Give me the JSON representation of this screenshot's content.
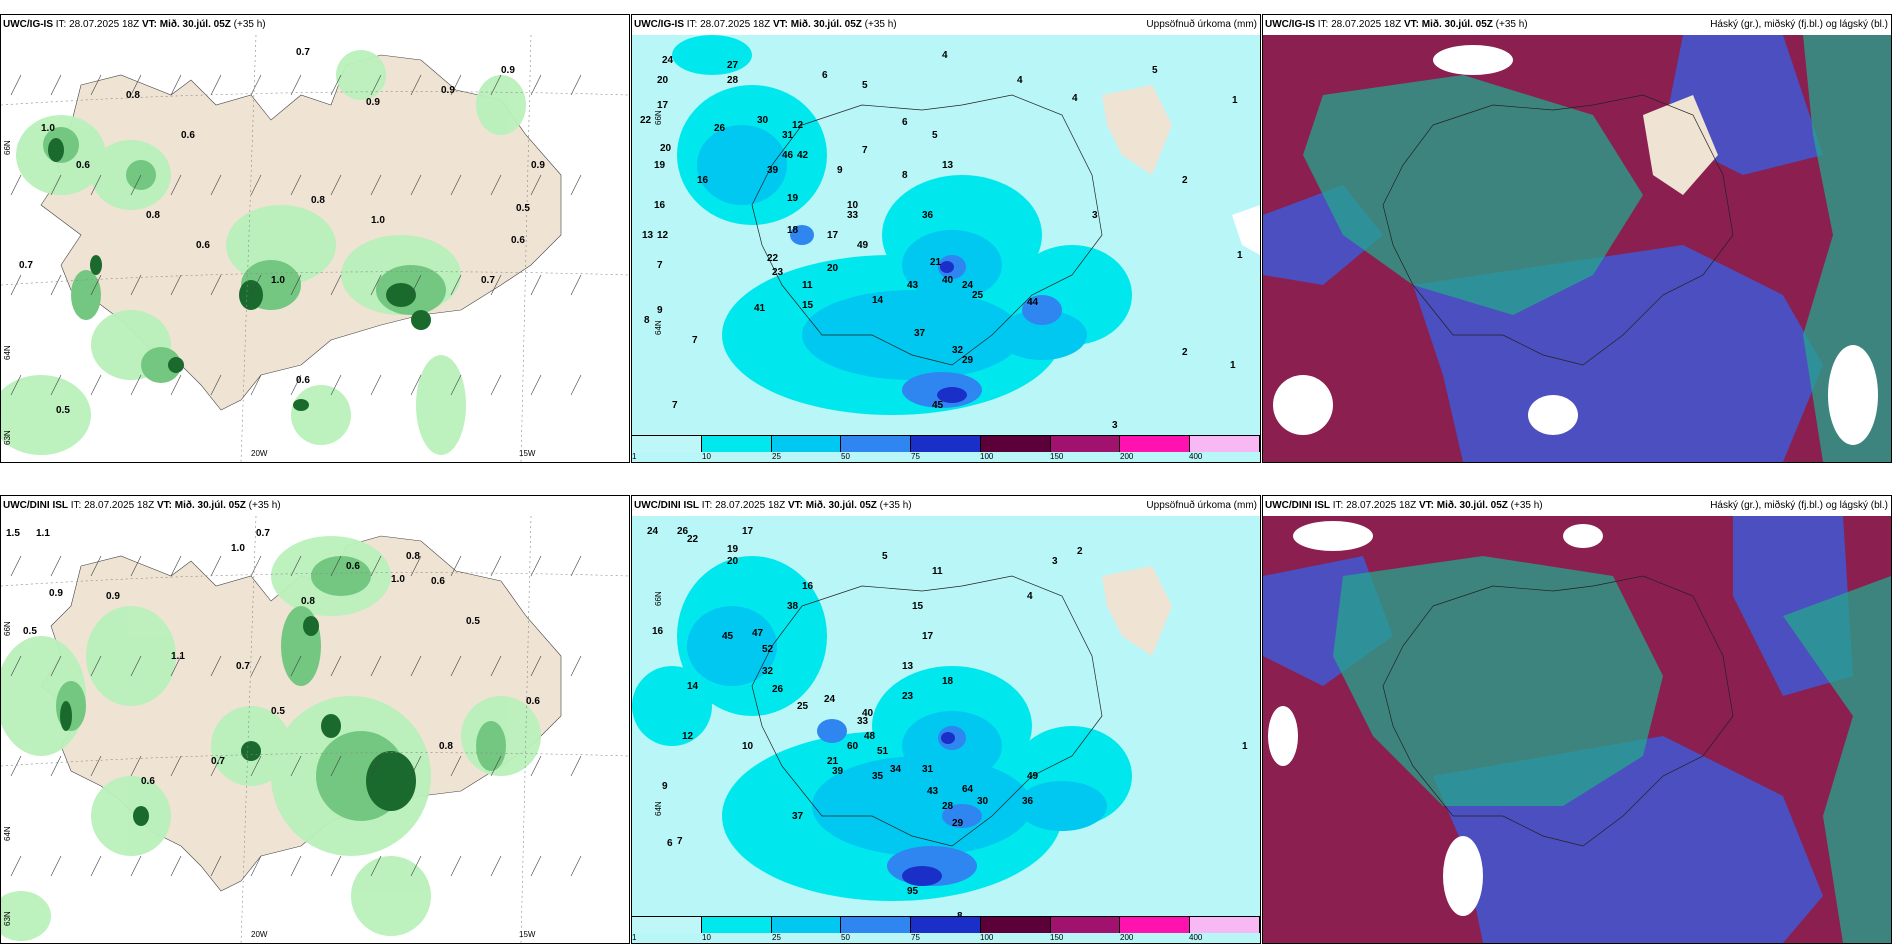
{
  "colors": {
    "land": "#efe3d4",
    "sea_bg": "#ffffff",
    "precip_light": "#b9f0ba",
    "precip_mid": "#73c780",
    "precip_heavy": "#1b6a2d",
    "precip_sea_base": "#b8f6f7",
    "cloud_high": "#24a78d",
    "cloud_mid": "#8b1f4f",
    "cloud_low": "#4b4fbf"
  },
  "legend": {
    "ticks": [
      "1",
      "10",
      "25",
      "50",
      "75",
      "100",
      "150",
      "200",
      "400"
    ],
    "colors": [
      "#bff7f9",
      "#00e8ee",
      "#00c8f0",
      "#2f86f0",
      "#1a2fc8",
      "#5b0038",
      "#a0126e",
      "#ff12b0",
      "#f7b8f4"
    ]
  },
  "top_row": {
    "panels": [
      {
        "model": "UWC/IG-IS",
        "it": "IT: 28.07.2025 18Z",
        "vt_label": "VT:",
        "vt": "Mið. 30.júl. 05Z",
        "step": "(+35 h)",
        "right": "",
        "type": "precip-wind",
        "labels": [
          "0.7",
          "0.8",
          "0.9",
          "0.6",
          "1.0",
          "0.6",
          "0.8",
          "0.6",
          "1.0",
          "0.8",
          "0.5",
          "0.7",
          "0.9",
          "0.6",
          "1.0",
          "0.9",
          "0.5",
          "0.7",
          "0.9",
          "0.6"
        ],
        "axis_bottom": [
          "20W",
          "15W"
        ],
        "axis_left": [
          "66N",
          "64N",
          "63N"
        ]
      },
      {
        "model": "UWC/IG-IS",
        "it": "IT: 28.07.2025 18Z",
        "vt_label": "VT:",
        "vt": "Mið. 30.júl. 05Z",
        "step": "(+35 h)",
        "right": "Uppsöfnuð úrkoma (mm)",
        "type": "accum",
        "labels": [
          "24",
          "20",
          "17",
          "22",
          "19",
          "20",
          "16",
          "13",
          "12",
          "7",
          "9",
          "8",
          "7",
          "7",
          "4",
          "5",
          "6",
          "4",
          "4",
          "3",
          "5",
          "6",
          "7",
          "8",
          "9",
          "10",
          "11",
          "12",
          "13",
          "14",
          "15",
          "16",
          "17",
          "18",
          "19",
          "20",
          "21",
          "22",
          "23",
          "24",
          "25",
          "26",
          "27",
          "28",
          "29",
          "30",
          "31",
          "32",
          "33",
          "36",
          "37",
          "39",
          "40",
          "41",
          "42",
          "43",
          "44",
          "45",
          "46",
          "49",
          "2",
          "1",
          "1",
          "1",
          "2",
          "3",
          "5",
          "8"
        ],
        "axis_left": [
          "66N",
          "64N"
        ]
      },
      {
        "model": "UWC/IG-IS",
        "it": "IT: 28.07.2025 18Z",
        "vt_label": "VT:",
        "vt": "Mið. 30.júl. 05Z",
        "step": "(+35 h)",
        "right": "Háský (gr.), miðský (fj.bl.) og lágský (bl.)",
        "type": "cloud"
      }
    ]
  },
  "bottom_row": {
    "panels": [
      {
        "model": "UWC/DINI ISL",
        "it": "IT: 28.07.2025 18Z",
        "vt_label": "VT:",
        "vt": "Mið. 30.júl. 05Z",
        "step": "(+35 h)",
        "right": "",
        "type": "precip-wind",
        "labels": [
          "1.5",
          "1.1",
          "0.7",
          "1.0",
          "0.8",
          "0.6",
          "0.9",
          "0.5",
          "0.9",
          "0.6",
          "1.0",
          "0.5",
          "0.6",
          "0.8",
          "0.7",
          "0.5",
          "1.1",
          "0.7",
          "0.8",
          "0.6"
        ],
        "axis_bottom": [
          "20W",
          "15W"
        ],
        "axis_left": [
          "66N",
          "64N",
          "63N"
        ]
      },
      {
        "model": "UWC/DINI ISL",
        "it": "IT: 28.07.2025 18Z",
        "vt_label": "VT:",
        "vt": "Mið. 30.júl. 05Z",
        "step": "(+35 h)",
        "right": "Uppsöfnuð úrkoma (mm)",
        "type": "accum",
        "labels": [
          "24",
          "26",
          "17",
          "16",
          "12",
          "10",
          "9",
          "7",
          "6",
          "5",
          "4",
          "3",
          "2",
          "1",
          "8",
          "11",
          "13",
          "14",
          "15",
          "16",
          "17",
          "18",
          "19",
          "20",
          "21",
          "22",
          "23",
          "24",
          "25",
          "26",
          "28",
          "29",
          "30",
          "31",
          "32",
          "33",
          "34",
          "35",
          "36",
          "37",
          "38",
          "39",
          "40",
          "43",
          "45",
          "47",
          "48",
          "49",
          "51",
          "52",
          "60",
          "64",
          "95"
        ],
        "axis_left": [
          "66N",
          "64N"
        ]
      },
      {
        "model": "UWC/DINI ISL",
        "it": "IT: 28.07.2025 18Z",
        "vt_label": "VT:",
        "vt": "Mið. 30.júl. 05Z",
        "step": "(+35 h)",
        "right": "Háský (gr.), miðský (fj.bl.) og lágský (bl.)",
        "type": "cloud"
      }
    ]
  }
}
